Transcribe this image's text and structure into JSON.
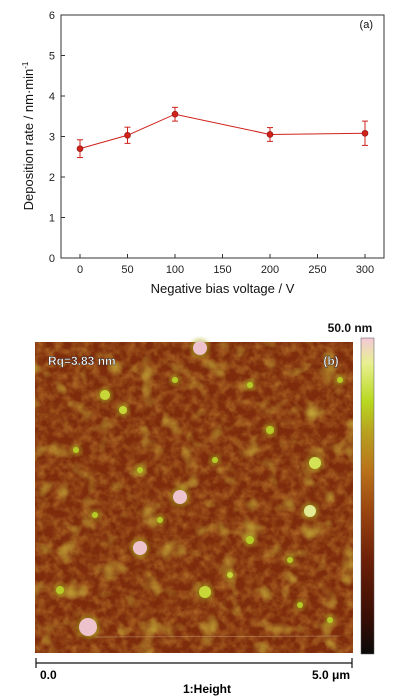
{
  "chart_data": [
    {
      "type": "line",
      "panel_label": "(a)",
      "xlabel": "Negative bias voltage / V",
      "ylabel": "Deposition rate / nm·min",
      "ylabel_superscript": "-1",
      "x": [
        0,
        50,
        100,
        200,
        300
      ],
      "series": [
        {
          "values": [
            2.7,
            3.03,
            3.55,
            3.05,
            3.08
          ],
          "errors": [
            0.22,
            0.2,
            0.17,
            0.17,
            0.3
          ],
          "color": "#d0211b"
        }
      ],
      "xlim": [
        -20,
        320
      ],
      "ylim": [
        0,
        6
      ],
      "xticks": [
        "0",
        "50",
        "100",
        "150",
        "200",
        "250",
        "300"
      ],
      "yticks": [
        "0",
        "1",
        "2",
        "3",
        "4",
        "5",
        "6"
      ],
      "grid": false,
      "legend": "none"
    },
    {
      "type": "heatmap",
      "panel_label": "(b)",
      "annotation": "Rq=3.83 nm",
      "colorbar_max_label": "50.0 nm",
      "scale_start_label": "0.0",
      "scale_end_label": "5.0 μm",
      "channel_label": "1:Height",
      "colormap": [
        "#0a0a0a",
        "#3a0e05",
        "#6e2008",
        "#9a4410",
        "#b9721a",
        "#b8a020",
        "#b8d820",
        "#e8f090",
        "#f4c8d8"
      ]
    }
  ]
}
